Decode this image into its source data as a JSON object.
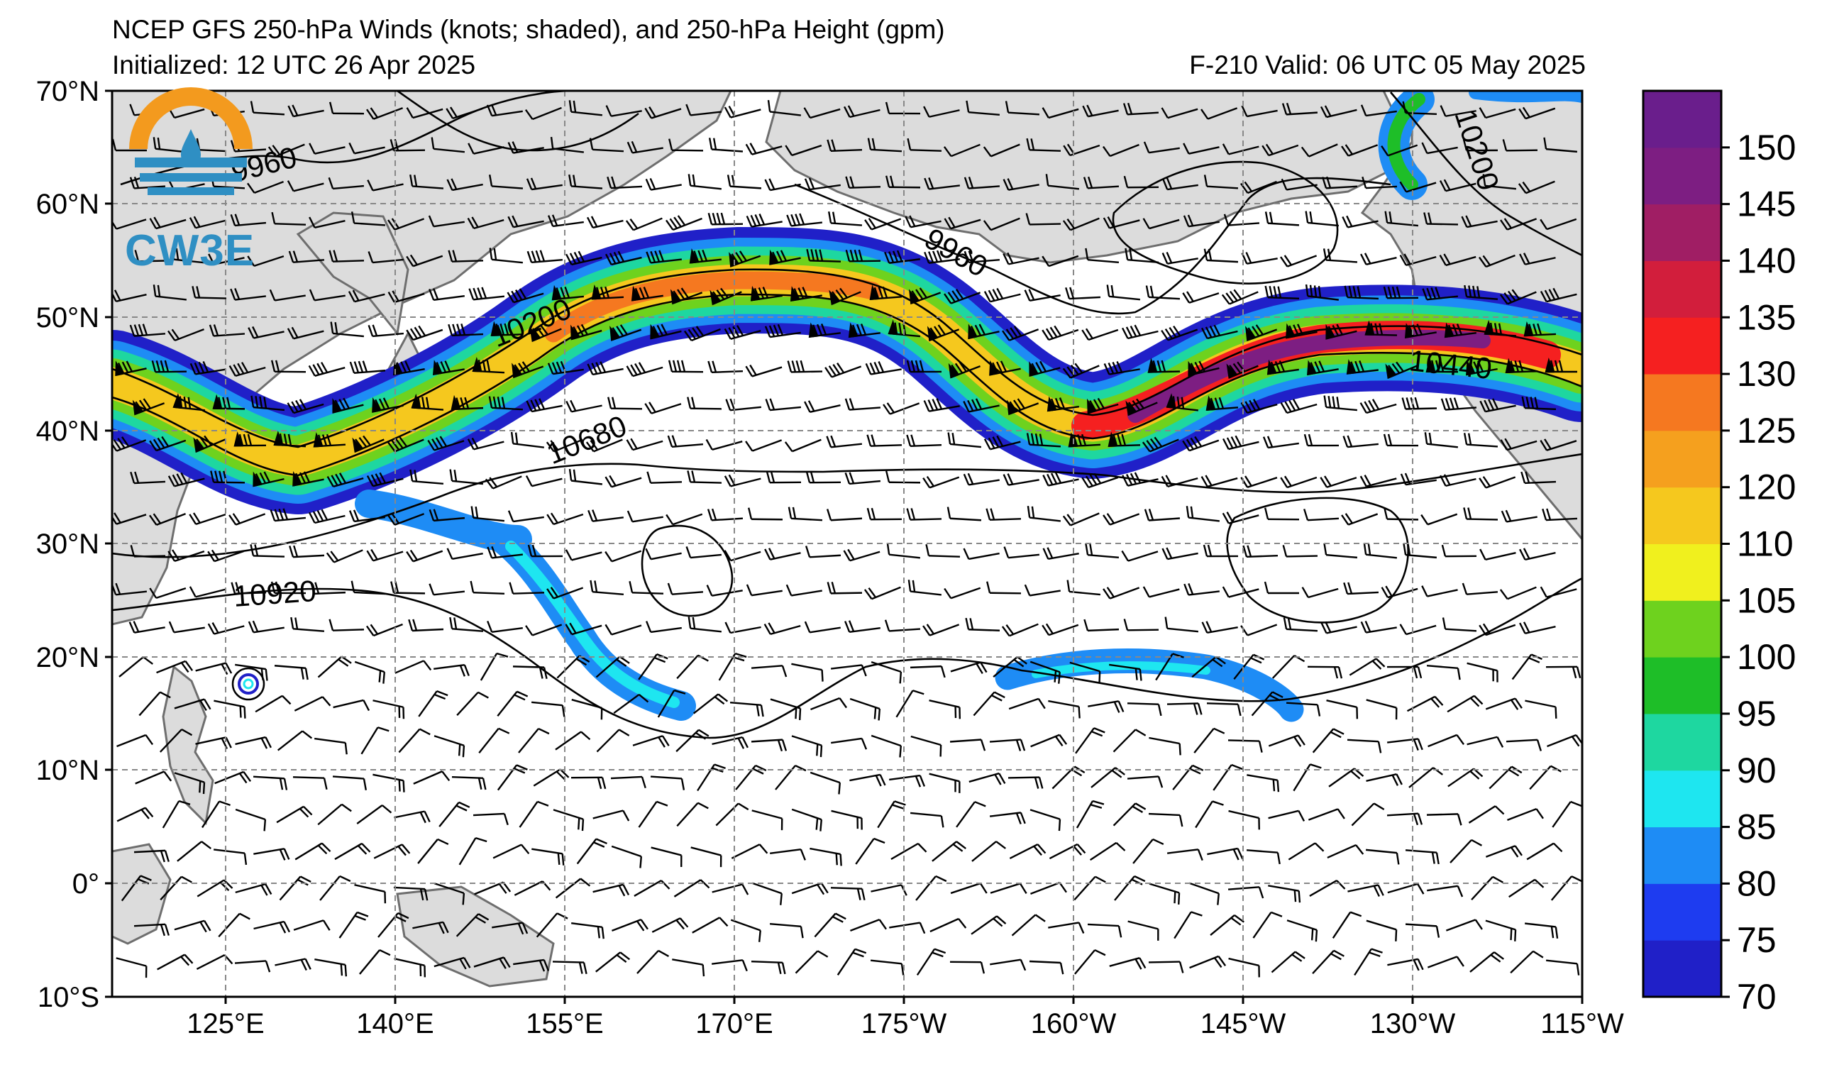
{
  "header": {
    "title": "NCEP GFS 250-hPa Winds (knots; shaded), and 250-hPa Height (gpm)",
    "initialized": "Initialized: 12 UTC 26 Apr 2025",
    "valid": "F-210  Valid: 06 UTC 05 May 2025"
  },
  "logo": {
    "text": "CW3E"
  },
  "axes": {
    "lat_labels": [
      "70°N",
      "60°N",
      "50°N",
      "40°N",
      "30°N",
      "20°N",
      "10°N",
      "0°",
      "10°S"
    ],
    "lon_labels": [
      "125°E",
      "140°E",
      "155°E",
      "170°E",
      "175°W",
      "160°W",
      "145°W",
      "130°W",
      "115°W"
    ]
  },
  "contours": {
    "labels": [
      "9960",
      "9960",
      "10200",
      "10200",
      "10440",
      "10680",
      "10920"
    ]
  },
  "colorbar": {
    "tick_labels": [
      "70",
      "75",
      "80",
      "85",
      "90",
      "95",
      "100",
      "105",
      "110",
      "120",
      "125",
      "130",
      "135",
      "140",
      "145",
      "150"
    ],
    "colors": [
      "#2020c8",
      "#1e3cf0",
      "#1e8cf5",
      "#1ee6f0",
      "#1ed7a0",
      "#1ebe28",
      "#6ed21e",
      "#f0f01e",
      "#f5c81e",
      "#f5a01e",
      "#f57820",
      "#f52020",
      "#d21e3c",
      "#a01e64",
      "#7d1e82",
      "#6a1e8c"
    ]
  },
  "colors": {
    "land": "#dcdcdc",
    "ocean": "#ffffff",
    "grid": "#888888"
  }
}
